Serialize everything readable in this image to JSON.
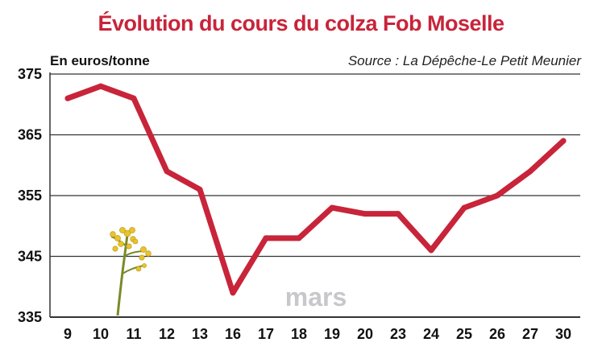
{
  "colors": {
    "title": "#c8243a",
    "line": "#c8243a",
    "grid": "#333333",
    "plant_stem": "#7a8a2a",
    "plant_flower": "#e8c32a"
  },
  "chart_data": {
    "type": "line",
    "title": "Évolution du cours du colza Fob Moselle",
    "ylabel": "En euros/tonne",
    "source": "Source : La Dépêche-Le Petit Meunier",
    "xlabel": "mars",
    "categories": [
      "9",
      "10",
      "11",
      "12",
      "13",
      "16",
      "17",
      "18",
      "19",
      "20",
      "23",
      "24",
      "25",
      "26",
      "27",
      "30"
    ],
    "values": [
      371,
      373,
      371,
      359,
      356,
      339,
      348,
      348,
      353,
      352,
      352,
      346,
      353,
      355,
      359,
      364
    ],
    "ylim": [
      335,
      375
    ],
    "yticks": [
      335,
      345,
      355,
      365,
      375
    ],
    "grid": true,
    "decoration": "rapeseed-flower-icon"
  }
}
